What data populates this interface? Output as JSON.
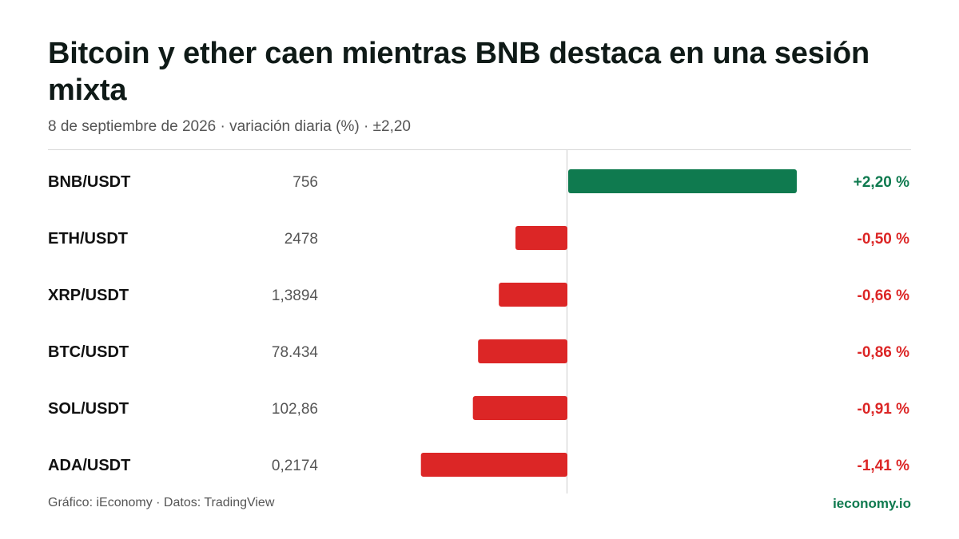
{
  "header": {
    "title": "Bitcoin y ether caen mientras BNB destaca en una sesión mixta",
    "subtitle": "8 de septiembre de 2026 · variación diaria (%) · ±2,20"
  },
  "footer": {
    "source": "Gráfico: iEconomy · Datos: TradingView",
    "brand": "ieconomy.io"
  },
  "colors": {
    "positive": "#0f7a4f",
    "negative": "#dc2626",
    "label": "#111111",
    "price": "#555555"
  },
  "chart_data": {
    "type": "bar",
    "orientation": "horizontal",
    "categories": [
      "BNB/USDT",
      "ETH/USDT",
      "XRP/USDT",
      "BTC/USDT",
      "SOL/USDT",
      "ADA/USDT"
    ],
    "prices": [
      "756",
      "2478",
      "1,3894",
      "78.434",
      "102,86",
      "0,2174"
    ],
    "values": [
      2.2,
      -0.5,
      -0.66,
      -0.86,
      -0.91,
      -1.41
    ],
    "value_labels": [
      "+2,20 %",
      "-0,50 %",
      "-0,66 %",
      "-0,86 %",
      "-0,91 %",
      "-1,41 %"
    ],
    "xlim": [
      -2.2,
      2.2
    ]
  }
}
